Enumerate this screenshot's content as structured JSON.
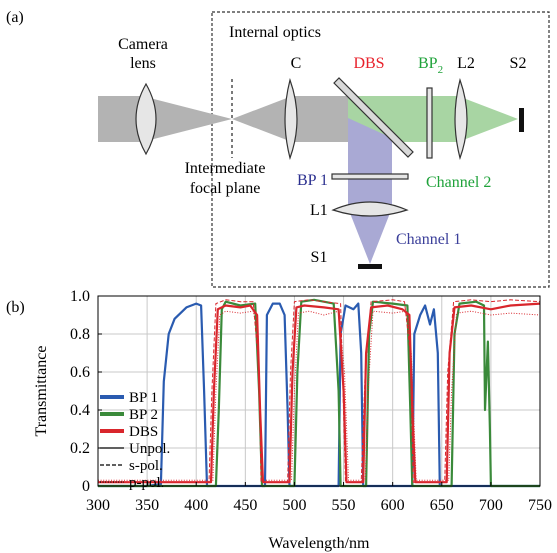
{
  "panel_a": {
    "label": "(a)",
    "camera_lens_line1": "Camera",
    "camera_lens_line2": "lens",
    "internal_optics": "Internal optics",
    "c_label": "C",
    "dbs_label": "DBS",
    "bp2_main": "BP",
    "bp2_sub": "2",
    "l2_label": "L2",
    "s2_label": "S2",
    "intermediate_line1": "Intermediate",
    "intermediate_line2": "focal plane",
    "bp1_label": "BP 1",
    "channel2_label": "Channel 2",
    "l1_label": "L1",
    "channel1_label": "Channel 1",
    "s1_label": "S1",
    "colors": {
      "beam_gray": "#b3b3b3",
      "channel2_green": "#a8d5a3",
      "channel1_blue": "#a9a9d4",
      "dbs_red": "#e8212b",
      "bp2_green": "#1fa23a",
      "bp1_blue": "#2b2f8f",
      "channel2_text": "#1fa23a",
      "channel1_text": "#3b3f9a"
    }
  },
  "panel_b": {
    "label": "(b)"
  },
  "chart_data": {
    "type": "line",
    "xlabel": "Wavelength/nm",
    "ylabel": "Transmittance",
    "xlim": [
      300,
      750
    ],
    "ylim": [
      0,
      1.0
    ],
    "xticks": [
      300,
      350,
      400,
      450,
      500,
      550,
      600,
      650,
      700,
      750
    ],
    "yticks": [
      0,
      0.2,
      0.4,
      0.6,
      0.8,
      1.0
    ],
    "ytick_labels": [
      "0",
      "0.2",
      "0.4",
      "0.6",
      "0.8",
      "1.0"
    ],
    "grid": true,
    "legend_position": "left-bottom",
    "legend": [
      {
        "label": "BP 1",
        "kind": "color",
        "color": "#2a5bb0"
      },
      {
        "label": "BP 2",
        "kind": "color",
        "color": "#3a8a3a"
      },
      {
        "label": "DBS",
        "kind": "color",
        "color": "#d9262c"
      },
      {
        "label": "Unpol.",
        "kind": "style",
        "style": "solid"
      },
      {
        "label": "s-pol.",
        "kind": "style",
        "style": "dashed"
      },
      {
        "label": "p-pol.",
        "kind": "style",
        "style": "dotted"
      }
    ],
    "series": [
      {
        "name": "BP 1",
        "color": "#2a5bb0",
        "style": "solid",
        "x": [
          300,
          350,
          364,
          367,
          372,
          378,
          390,
          400,
          405,
          408,
          411,
          470,
          472,
          478,
          485,
          490,
          493,
          495,
          545,
          547,
          552,
          560,
          565,
          568,
          570,
          620,
          622,
          628,
          633,
          638,
          642,
          646,
          648,
          750
        ],
        "y": [
          0,
          0,
          0.01,
          0.55,
          0.8,
          0.88,
          0.94,
          0.96,
          0.95,
          0.5,
          0.0,
          0.0,
          0.9,
          0.96,
          0.96,
          0.9,
          0.4,
          0.0,
          0.0,
          0.8,
          0.95,
          0.93,
          0.96,
          0.7,
          0.0,
          0.0,
          0.8,
          0.9,
          0.95,
          0.85,
          0.93,
          0.7,
          0.0,
          0.0
        ]
      },
      {
        "name": "BP 2",
        "color": "#3a8a3a",
        "style": "solid",
        "x": [
          300,
          420,
          423,
          426,
          430,
          445,
          460,
          464,
          467,
          500,
          503,
          507,
          520,
          540,
          545,
          547,
          573,
          576,
          580,
          600,
          615,
          618,
          620,
          660,
          663,
          668,
          685,
          693,
          694,
          697,
          699,
          700,
          750
        ],
        "y": [
          0,
          0,
          0.4,
          0.93,
          0.97,
          0.95,
          0.96,
          0.5,
          0.0,
          0.0,
          0.6,
          0.97,
          0.98,
          0.96,
          0.5,
          0.0,
          0.0,
          0.8,
          0.97,
          0.96,
          0.95,
          0.4,
          0.0,
          0.0,
          0.8,
          0.96,
          0.97,
          0.95,
          0.4,
          0.76,
          0.3,
          0.0,
          0.0
        ]
      },
      {
        "name": "DBS",
        "color": "#d9262c",
        "style": "solid",
        "x": [
          300,
          415,
          418,
          422,
          430,
          445,
          455,
          462,
          465,
          468,
          495,
          498,
          502,
          510,
          530,
          545,
          550,
          553,
          570,
          573,
          578,
          595,
          610,
          617,
          620,
          623,
          655,
          658,
          663,
          680,
          700,
          720,
          750
        ],
        "y": [
          0.02,
          0.02,
          0.5,
          0.93,
          0.95,
          0.94,
          0.95,
          0.9,
          0.4,
          0.02,
          0.02,
          0.6,
          0.94,
          0.95,
          0.94,
          0.93,
          0.5,
          0.02,
          0.02,
          0.7,
          0.94,
          0.95,
          0.93,
          0.9,
          0.4,
          0.02,
          0.02,
          0.7,
          0.94,
          0.95,
          0.93,
          0.95,
          0.96
        ]
      },
      {
        "name": "",
        "color": "#d9262c",
        "style": "dashed",
        "x": [
          300,
          413,
          416,
          420,
          430,
          445,
          458,
          464,
          466,
          493,
          496,
          500,
          515,
          530,
          547,
          552,
          568,
          572,
          578,
          600,
          612,
          618,
          621,
          653,
          656,
          662,
          680,
          700,
          720,
          750
        ],
        "y": [
          0.02,
          0.02,
          0.5,
          0.96,
          0.98,
          0.97,
          0.97,
          0.6,
          0.02,
          0.02,
          0.6,
          0.97,
          0.98,
          0.97,
          0.96,
          0.02,
          0.02,
          0.6,
          0.97,
          0.98,
          0.97,
          0.7,
          0.02,
          0.02,
          0.6,
          0.97,
          0.98,
          0.97,
          0.98,
          0.97
        ]
      },
      {
        "name": "",
        "color": "#d9262c",
        "style": "dotted",
        "x": [
          300,
          417,
          420,
          424,
          430,
          445,
          458,
          463,
          467,
          497,
          500,
          504,
          515,
          530,
          545,
          551,
          555,
          572,
          575,
          580,
          600,
          614,
          619,
          624,
          657,
          660,
          665,
          680,
          700,
          720,
          750
        ],
        "y": [
          0.03,
          0.03,
          0.5,
          0.9,
          0.92,
          0.91,
          0.92,
          0.8,
          0.03,
          0.03,
          0.5,
          0.91,
          0.92,
          0.9,
          0.92,
          0.6,
          0.03,
          0.03,
          0.5,
          0.92,
          0.91,
          0.92,
          0.7,
          0.03,
          0.03,
          0.5,
          0.91,
          0.92,
          0.9,
          0.91,
          0.9
        ]
      }
    ]
  }
}
